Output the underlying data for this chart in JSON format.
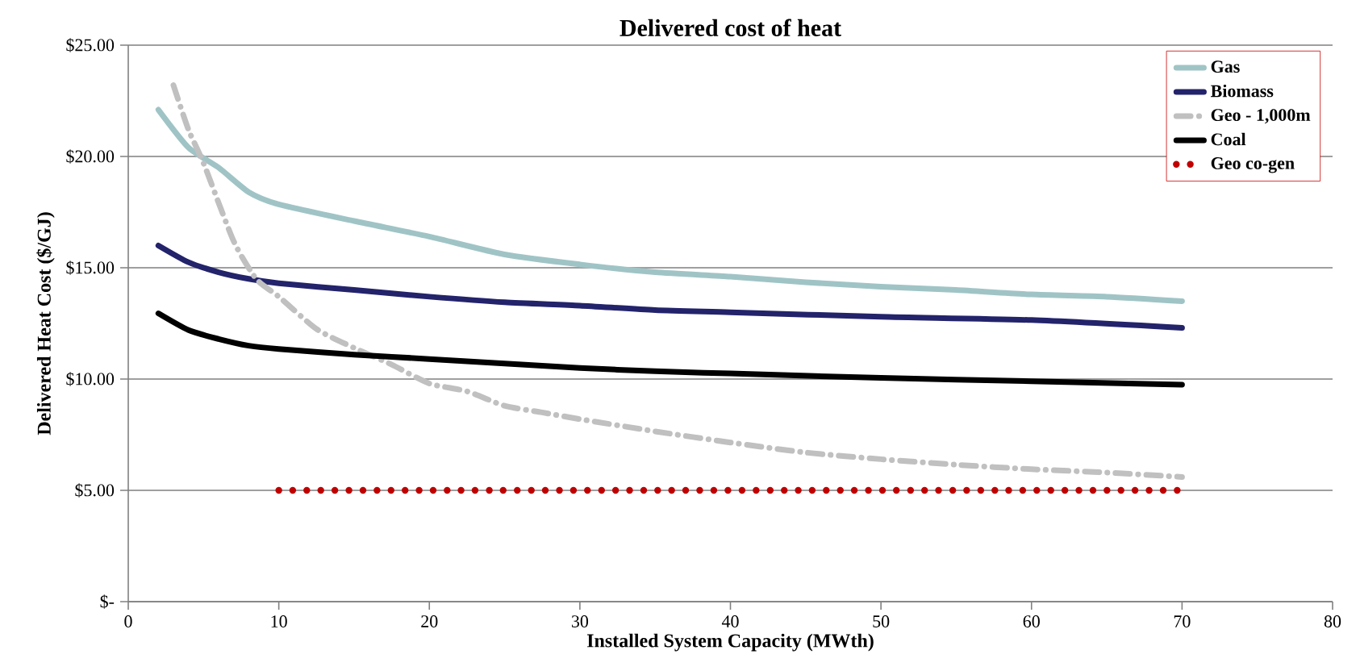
{
  "chart_data": {
    "type": "line",
    "title": "Delivered cost of heat",
    "xlabel": "Installed System Capacity (MWth)",
    "ylabel": "Delivered Heat Cost ($/GJ)",
    "xlim": [
      0,
      80
    ],
    "xticks": [
      0,
      10,
      20,
      30,
      40,
      50,
      60,
      70,
      80
    ],
    "ylim": [
      0,
      25
    ],
    "yticks": [
      {
        "value": 0,
        "label": "$-"
      },
      {
        "value": 5,
        "label": "$5.00"
      },
      {
        "value": 10,
        "label": "$10.00"
      },
      {
        "value": 15,
        "label": "$15.00"
      },
      {
        "value": 20,
        "label": "$20.00"
      },
      {
        "value": 25,
        "label": "$25.00"
      }
    ],
    "grid": "y",
    "legend": "top right",
    "marker": "none",
    "series": [
      {
        "name": "Gas",
        "color": "#a0c4c6",
        "line_style": "solid",
        "x": [
          2,
          4,
          6,
          8,
          10,
          15,
          20,
          25,
          30,
          35,
          40,
          45,
          50,
          55,
          60,
          65,
          70
        ],
        "values": [
          22.1,
          20.4,
          19.5,
          18.4,
          17.85,
          17.1,
          16.4,
          15.6,
          15.15,
          14.8,
          14.6,
          14.35,
          14.15,
          14.0,
          13.8,
          13.7,
          13.5
        ]
      },
      {
        "name": "Biomass",
        "color": "#23236b",
        "line_style": "solid",
        "x": [
          2,
          4,
          6,
          8,
          10,
          15,
          20,
          25,
          30,
          35,
          40,
          50,
          60,
          70
        ],
        "values": [
          16.0,
          15.25,
          14.8,
          14.5,
          14.3,
          14.0,
          13.7,
          13.45,
          13.3,
          13.1,
          13.0,
          12.8,
          12.65,
          12.3
        ]
      },
      {
        "name": "Geo - 1,000m",
        "color": "#c0c0c0",
        "line_style": "dashed",
        "x": [
          3,
          4,
          5,
          7,
          8.5,
          10,
          12.5,
          15,
          17.5,
          20,
          22.5,
          25,
          27.5,
          30,
          35,
          40,
          45,
          50,
          55,
          60,
          65,
          70
        ],
        "values": [
          23.2,
          21.2,
          19.7,
          16.2,
          14.5,
          13.7,
          12.25,
          11.4,
          10.65,
          9.8,
          9.45,
          8.8,
          8.5,
          8.2,
          7.65,
          7.15,
          6.7,
          6.4,
          6.15,
          5.95,
          5.8,
          5.6
        ]
      },
      {
        "name": "Coal",
        "color": "#000000",
        "line_style": "solid",
        "x": [
          2,
          4,
          6,
          8,
          10,
          15,
          20,
          25,
          30,
          35,
          40,
          50,
          60,
          70
        ],
        "values": [
          12.95,
          12.2,
          11.8,
          11.5,
          11.35,
          11.1,
          10.9,
          10.7,
          10.5,
          10.35,
          10.25,
          10.05,
          9.9,
          9.75
        ]
      },
      {
        "name": "Geo co-gen",
        "color": "#c00000",
        "line_style": "dotted",
        "x": [
          10,
          70
        ],
        "values": [
          5,
          5
        ]
      }
    ]
  }
}
